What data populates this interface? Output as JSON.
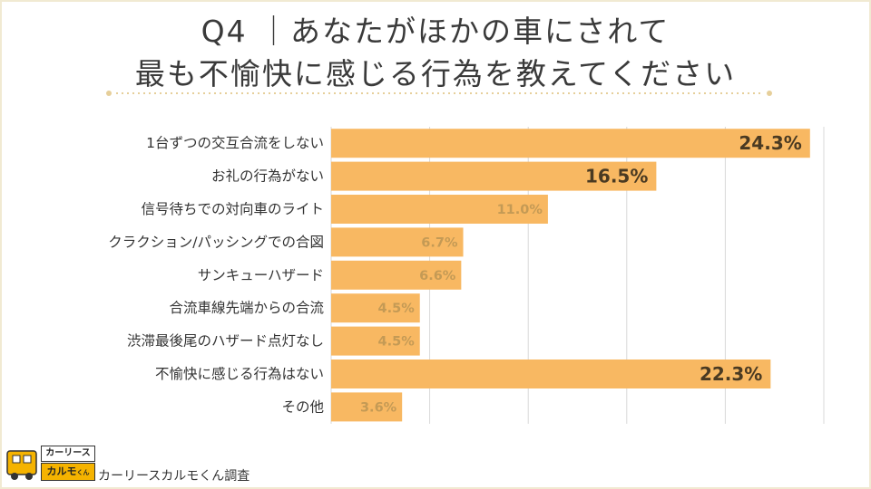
{
  "title": {
    "line1": "Q4 ｜あなたがほかの車にされて",
    "line2": "最も不愉快に感じる行為を教えてください"
  },
  "chart_data": {
    "type": "bar",
    "orientation": "horizontal",
    "categories": [
      "1台ずつの交互合流をしない",
      "お礼の行為がない",
      "信号待ちでの対向車のライト",
      "クラクション/パッシングでの合図",
      "サンキューハザード",
      "合流車線先端からの合流",
      "渋滞最後尾のハザード点灯なし",
      "不愉快に感じる行為はない",
      "その他"
    ],
    "values": [
      24.3,
      16.5,
      11.0,
      6.7,
      6.6,
      4.5,
      4.5,
      22.3,
      3.6
    ],
    "value_labels": [
      "24.3%",
      "16.5%",
      "11.0%",
      "6.7%",
      "6.6%",
      "4.5%",
      "4.5%",
      "22.3%",
      "3.6%"
    ],
    "unit": "%",
    "xlim": [
      0,
      25
    ],
    "grid": true,
    "bar_color": "#f8b862",
    "title": "Q4 ｜あなたがほかの車にされて 最も不愉快に感じる行為を教えてください"
  },
  "logo": {
    "top_text": "カーリース",
    "bottom_text": "カルモ",
    "bottom_suffix": "くん"
  },
  "source": "カーリースカルモくん調査",
  "colors": {
    "bar": "#f8b862",
    "grid": "#d9d9d9",
    "separator": "#e6cf9a",
    "brand": "#f5b300"
  }
}
